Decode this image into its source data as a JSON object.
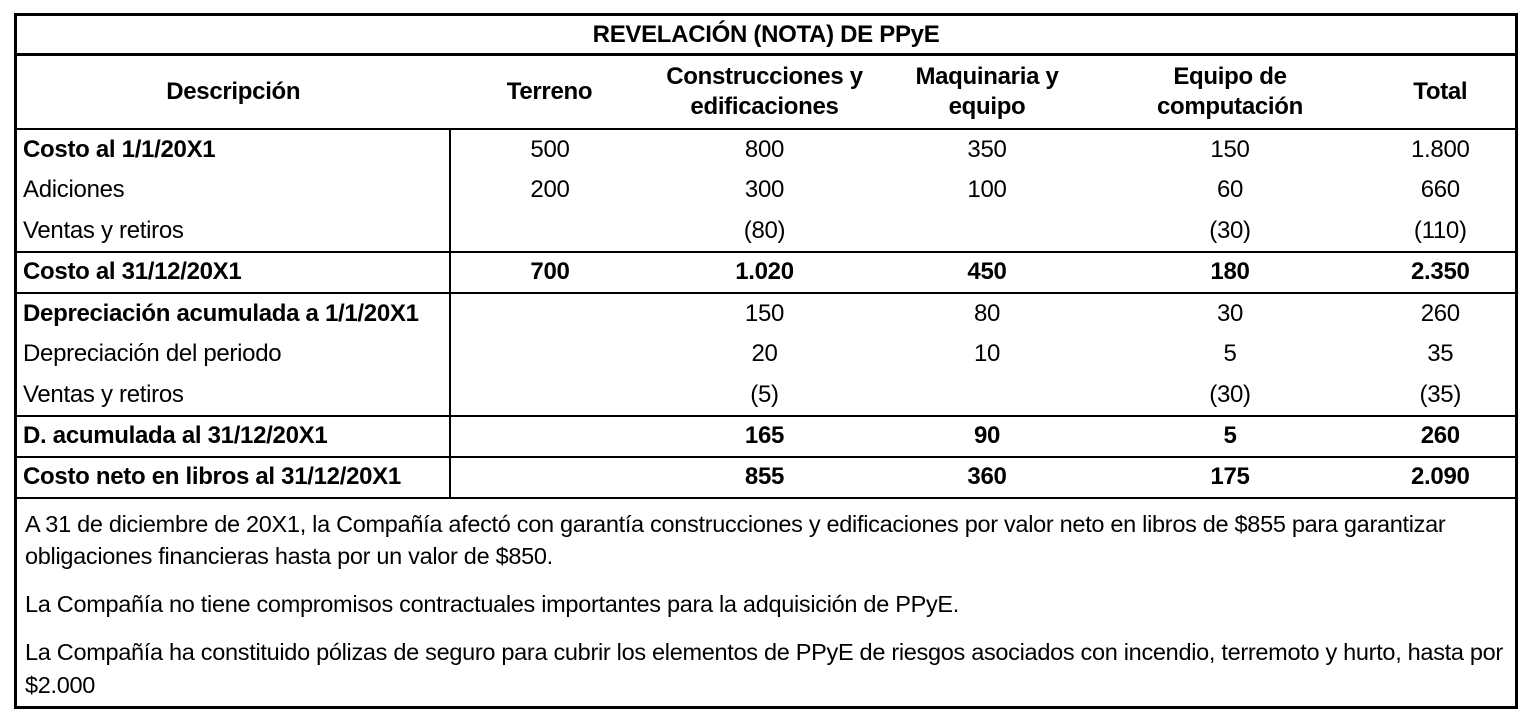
{
  "title": "REVELACIÓN (NOTA) DE PPyE",
  "colors": {
    "text": "#000000",
    "border": "#000000",
    "background": "#ffffff"
  },
  "table": {
    "columns": [
      "Descripción",
      "Terreno",
      "Construcciones y edificaciones",
      "Maquinaria y equipo",
      "Equipo de computación",
      "Total"
    ],
    "rows": [
      {
        "label": "Costo al 1/1/20X1",
        "type": "opening",
        "values": [
          "500",
          "800",
          "350",
          "150",
          "1.800"
        ]
      },
      {
        "label": "Adiciones",
        "type": "normal",
        "values": [
          "200",
          "300",
          "100",
          "60",
          "660"
        ]
      },
      {
        "label": "Ventas y retiros",
        "type": "normal",
        "values": [
          "",
          "(80)",
          "",
          "(30)",
          "(110)"
        ]
      },
      {
        "label": "Costo al 31/12/20X1",
        "type": "total",
        "values": [
          "700",
          "1.020",
          "450",
          "180",
          "2.350"
        ]
      },
      {
        "label": "Depreciación acumulada a 1/1/20X1",
        "type": "opening",
        "values": [
          "",
          "150",
          "80",
          "30",
          "260"
        ]
      },
      {
        "label": "Depreciación del periodo",
        "type": "normal",
        "values": [
          "",
          "20",
          "10",
          "5",
          "35"
        ]
      },
      {
        "label": "Ventas y retiros",
        "type": "normal",
        "values": [
          "",
          "(5)",
          "",
          "(30)",
          "(35)"
        ]
      },
      {
        "label": "D. acumulada al 31/12/20X1",
        "type": "total",
        "values": [
          "",
          "165",
          "90",
          "5",
          "260"
        ]
      },
      {
        "label": "Costo neto en libros al 31/12/20X1",
        "type": "total",
        "values": [
          "",
          "855",
          "360",
          "175",
          "2.090"
        ]
      }
    ],
    "notes": [
      "A 31 de diciembre de 20X1, la Compañía afectó con garantía construcciones y edificaciones por valor neto en libros de $855 para garantizar obligaciones financieras hasta por un valor de $850.",
      "La Compañía no tiene compromisos contractuales importantes para la adquisición de PPyE.",
      "La Compañía ha constituido pólizas de seguro para cubrir los elementos de PPyE de riesgos asociados con incendio, terremoto y hurto, hasta por $2.000"
    ]
  }
}
